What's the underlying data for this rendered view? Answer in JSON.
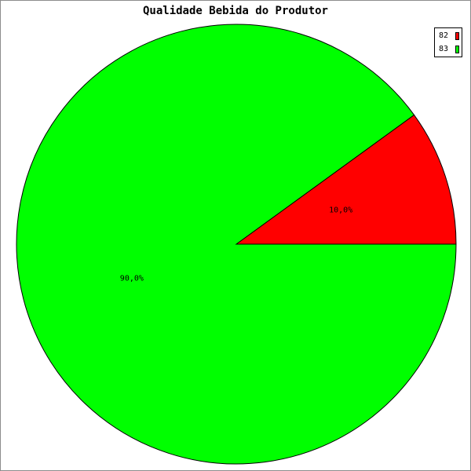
{
  "chart_data": {
    "type": "pie",
    "title": "Qualidade Bebida do Produtor",
    "slices": [
      {
        "name": "82",
        "value": 10.0,
        "label": "10,0%",
        "color": "#ff0000"
      },
      {
        "name": "83",
        "value": 90.0,
        "label": "90,0%",
        "color": "#00ff00"
      }
    ],
    "legend": {
      "position": "top-right"
    }
  }
}
